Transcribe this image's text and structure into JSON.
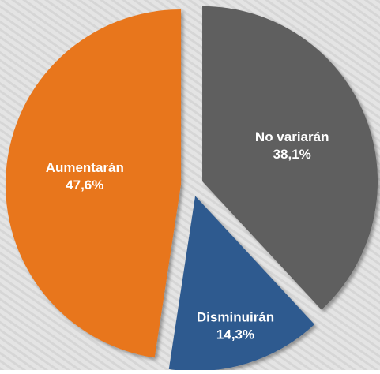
{
  "chart_data": {
    "type": "pie",
    "categories": [
      "No variarán",
      "Disminuirán",
      "Aumentarán"
    ],
    "values": [
      38.1,
      14.3,
      47.6
    ],
    "value_labels": [
      "38,1%",
      "14,3%",
      "47,6%"
    ],
    "colors": [
      "#5e5e5e",
      "#2d5a8f",
      "#e8761c"
    ]
  }
}
